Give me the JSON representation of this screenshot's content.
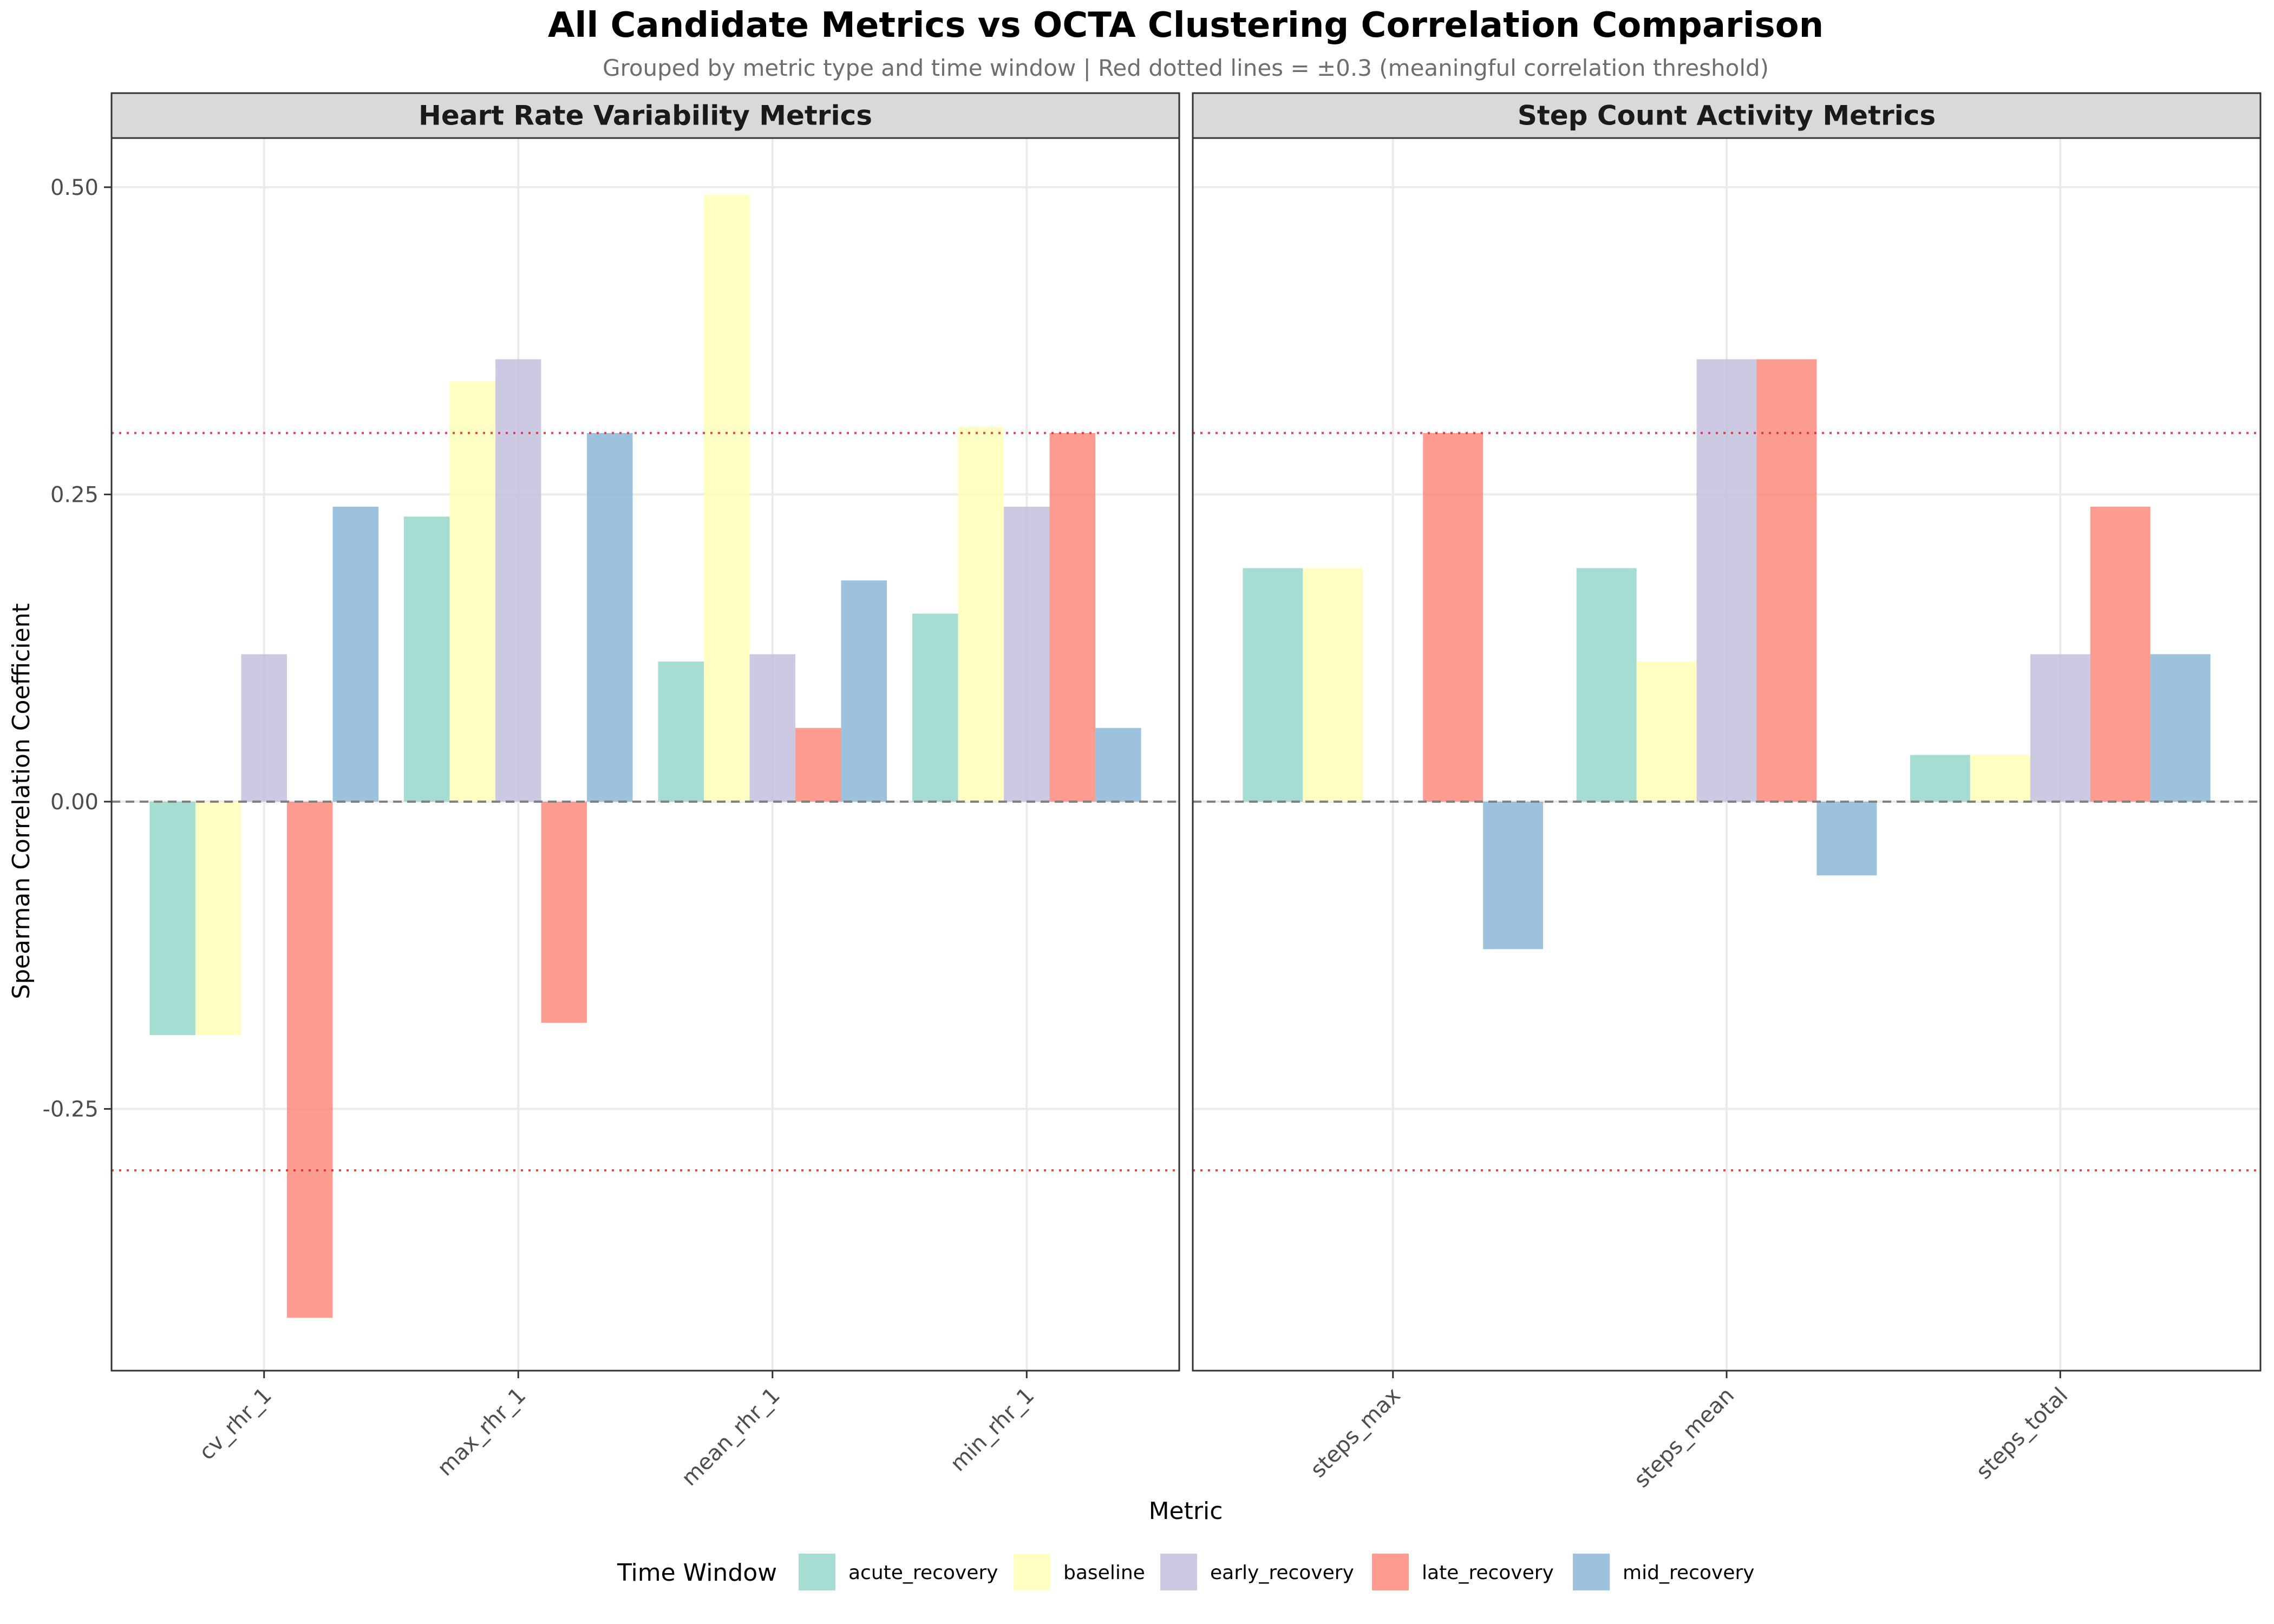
{
  "chart_data": {
    "type": "bar",
    "title": "All Candidate Metrics vs OCTA Clustering Correlation Comparison",
    "subtitle": "Grouped by metric type and time window | Red dotted lines = ±0.3 (meaningful correlation threshold)",
    "xlabel": "Metric",
    "ylabel": "Spearman Correlation Coefficient",
    "ylim": [
      -0.463,
      0.54
    ],
    "yticks": [
      -0.25,
      0.0,
      0.25,
      0.5
    ],
    "ytick_labels": [
      "-0.25",
      "0.00",
      "0.25",
      "0.50"
    ],
    "threshold_lines": [
      0.3,
      -0.3
    ],
    "threshold_color": "#e41a1c",
    "zero_line": 0,
    "grid": true,
    "legend_title": "Time Window",
    "legend_position": "bottom",
    "series": [
      {
        "name": "acute_recovery",
        "color": "#8dd3c7"
      },
      {
        "name": "baseline",
        "color": "#ffffb3"
      },
      {
        "name": "early_recovery",
        "color": "#bebada"
      },
      {
        "name": "late_recovery",
        "color": "#fb8072"
      },
      {
        "name": "mid_recovery",
        "color": "#80b1d3"
      }
    ],
    "panels": [
      {
        "title": "Heart Rate Variability Metrics",
        "categories": [
          "cv_rhr_1",
          "max_rhr_1",
          "mean_rhr_1",
          "min_rhr_1"
        ],
        "values": {
          "acute_recovery": [
            -0.19,
            0.232,
            0.114,
            0.153
          ],
          "baseline": [
            -0.19,
            0.342,
            0.494,
            0.305
          ],
          "early_recovery": [
            0.12,
            0.36,
            0.12,
            0.24
          ],
          "late_recovery": [
            -0.42,
            -0.18,
            0.06,
            0.3
          ],
          "mid_recovery": [
            0.24,
            0.3,
            0.18,
            0.06
          ]
        }
      },
      {
        "title": "Step Count Activity Metrics",
        "categories": [
          "steps_max",
          "steps_mean",
          "steps_total"
        ],
        "values": {
          "acute_recovery": [
            0.19,
            0.19,
            0.038
          ],
          "baseline": [
            0.19,
            0.114,
            0.038
          ],
          "early_recovery": [
            null,
            0.36,
            0.12
          ],
          "late_recovery": [
            0.3,
            0.36,
            0.24
          ],
          "mid_recovery": [
            -0.12,
            -0.06,
            0.12
          ]
        }
      }
    ]
  }
}
